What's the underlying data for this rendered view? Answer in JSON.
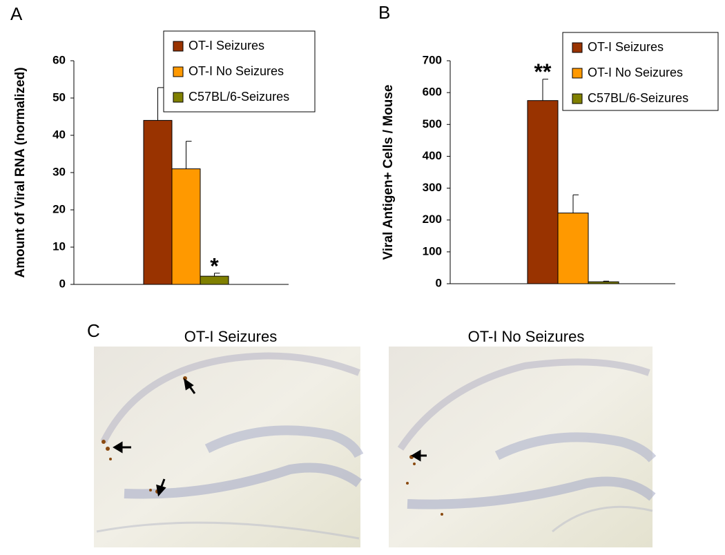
{
  "chart_data": [
    {
      "type": "bar",
      "panel": "A",
      "y_label": "Amount of Viral RNA (normalized)",
      "categories": [
        null
      ],
      "series": [
        {
          "name": "OT-I Seizures",
          "color": "#993300",
          "values": [
            44
          ],
          "errors": [
            8.8
          ]
        },
        {
          "name": "OT-I No Seizures",
          "color": "#FF9900",
          "values": [
            31
          ],
          "errors": [
            7.4
          ]
        },
        {
          "name": "C57BL/6-Seizures",
          "color": "#808000",
          "values": [
            2.2
          ],
          "errors": [
            0.8
          ]
        }
      ],
      "annotations": [
        {
          "text": "*",
          "series": "C57BL/6-Seizures"
        }
      ],
      "ylim": [
        0,
        60
      ],
      "yticks": [
        0,
        10,
        20,
        30,
        40,
        50,
        60
      ],
      "legend": "upper right"
    },
    {
      "type": "bar",
      "panel": "B",
      "y_label": "Viral Antigen+ Cells / Mouse",
      "categories": [
        null
      ],
      "series": [
        {
          "name": "OT-I Seizures",
          "color": "#993300",
          "values": [
            575
          ],
          "errors": [
            67
          ]
        },
        {
          "name": "OT-I No Seizures",
          "color": "#FF9900",
          "values": [
            222
          ],
          "errors": [
            57
          ]
        },
        {
          "name": "C57BL/6-Seizures",
          "color": "#808000",
          "values": [
            6
          ],
          "errors": [
            2
          ]
        }
      ],
      "annotations": [
        {
          "text": "**",
          "series": "OT-I Seizures"
        }
      ],
      "ylim": [
        0,
        700
      ],
      "yticks": [
        0,
        100,
        200,
        300,
        400,
        500,
        600,
        700
      ],
      "legend": "upper right"
    }
  ],
  "panel_c": {
    "label": "C",
    "images": [
      {
        "title": "OT-I Seizures"
      },
      {
        "title": "OT-I No Seizures"
      }
    ]
  }
}
